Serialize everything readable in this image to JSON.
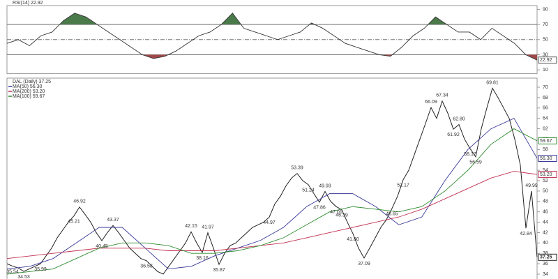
{
  "rsi": {
    "type": "line",
    "title": "RSI(14) 22.92",
    "tag": "22.92",
    "color": "#333333",
    "values": [
      45,
      50,
      42,
      55,
      60,
      75,
      85,
      80,
      70,
      60,
      50,
      40,
      30,
      25,
      28,
      35,
      45,
      55,
      60,
      70,
      85,
      65,
      60,
      55,
      50,
      55,
      60,
      72,
      65,
      55,
      45,
      40,
      35,
      30,
      28,
      40,
      55,
      65,
      80,
      70,
      60,
      60,
      50,
      65,
      55,
      45,
      30,
      22.92
    ],
    "ylim": [
      5,
      95
    ],
    "yticks": [
      90,
      70,
      50,
      30,
      10
    ],
    "reference_lines": [
      70,
      50,
      30
    ],
    "overbought": 70,
    "oversold": 30,
    "overbought_color": "#4a7a4a",
    "oversold_color": "#a04848"
  },
  "chart_data": {
    "type": "line",
    "title": "DAL (Daily) 37.25",
    "ylim": [
      33.06,
      71.75
    ],
    "yticks": [
      34,
      36,
      38,
      40,
      42,
      44,
      46,
      48,
      50,
      52,
      54,
      56,
      58,
      60,
      62,
      64,
      66,
      68,
      70
    ],
    "series": [
      {
        "name": "DAL (Daily) 37.25",
        "tag": "37.25",
        "color": "#222222",
        "values": [
          36.0,
          35.54,
          35.2,
          34.53,
          35.0,
          35.5,
          35.99,
          37.5,
          39,
          41,
          42.5,
          44,
          45.21,
          46.92,
          45.5,
          44,
          42,
          40.45,
          42,
          43.37,
          42,
          40.5,
          39,
          38,
          37,
          36.58,
          35.5,
          34.5,
          34,
          35.5,
          37,
          38.5,
          40,
          42.15,
          40,
          38.16,
          41.97,
          39,
          35.87,
          38,
          39.5,
          40,
          41,
          42,
          43,
          43.5,
          44,
          44.97,
          47.5,
          49,
          51,
          52.5,
          53.39,
          52,
          51.24,
          49.5,
          47.86,
          49.93,
          48,
          47.01,
          46.39,
          44,
          41.8,
          39,
          37.09,
          39,
          41,
          43,
          44.5,
          46.65,
          49,
          52.17,
          54,
          57,
          60,
          63,
          66.09,
          64,
          67.34,
          65,
          61.92,
          62.8,
          60,
          58.17,
          56.59,
          62,
          66,
          69.81,
          68,
          66,
          64,
          60,
          55,
          42.84,
          49.99,
          37.25
        ]
      },
      {
        "name": "MA(50) 56.30",
        "tag": "56.30",
        "color": "#3a3a9a",
        "values": [
          35,
          35.5,
          37,
          40,
          43,
          43,
          39,
          35,
          35.5,
          37.5,
          39,
          40.5,
          43,
          47,
          49.5,
          49.5,
          47,
          43.5,
          45,
          52,
          58,
          62,
          64,
          56.3
        ]
      },
      {
        "name": "MA(200) 53.20",
        "tag": "53.20",
        "color": "#c03050",
        "values": [
          37,
          37.5,
          38,
          38.5,
          39,
          39,
          39,
          38.5,
          38.5,
          38.5,
          39,
          39.5,
          40,
          41,
          42,
          43,
          44,
          45,
          46.5,
          48.5,
          50.5,
          52.5,
          53.8,
          53.2
        ]
      },
      {
        "name": "MA(100) 59.67",
        "tag": "59.67",
        "color": "#2e8a2e",
        "values": [
          34,
          34.5,
          35,
          37,
          39,
          40,
          40,
          39.5,
          38,
          38,
          38.5,
          39.5,
          41,
          43.5,
          46,
          47,
          46.5,
          46,
          47,
          50,
          54,
          59,
          62,
          59.67
        ]
      }
    ],
    "annotations": [
      35.54,
      34.53,
      35.99,
      45.21,
      46.92,
      40.45,
      43.37,
      36.58,
      42.15,
      38.16,
      41.97,
      35.87,
      44.97,
      53.39,
      51.24,
      47.86,
      49.93,
      47.01,
      46.39,
      {
        "value": 41.8,
        "label": "41.80"
      },
      37.09,
      46.65,
      52.17,
      66.09,
      67.34,
      61.92,
      {
        "value": 62.8,
        "label": "62.80"
      },
      58.17,
      56.59,
      69.81,
      42.84,
      49.99
    ]
  }
}
